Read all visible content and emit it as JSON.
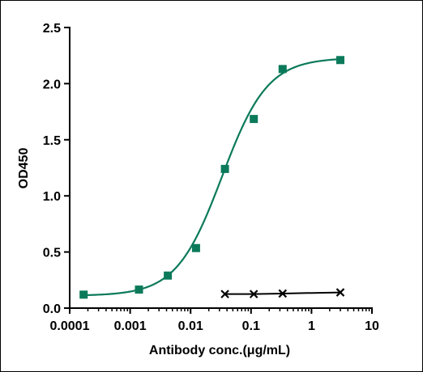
{
  "chart_data": {
    "type": "scatter",
    "title": "",
    "xlabel": "Antibody conc.(μg/mL)",
    "ylabel": "OD450",
    "x_scale": "log",
    "xlim": [
      0.0001,
      10
    ],
    "ylim": [
      0,
      2.5
    ],
    "x_ticks": [
      0.0001,
      0.001,
      0.01,
      0.1,
      1,
      10
    ],
    "x_tick_labels": [
      "0.0001",
      "0.001",
      "0.01",
      "0.1",
      "1",
      "10"
    ],
    "y_ticks": [
      0,
      0.5,
      1.0,
      1.5,
      2.0,
      2.5
    ],
    "y_tick_labels": [
      "0.0",
      "0.5",
      "1.0",
      "1.5",
      "2.0",
      "2.5"
    ],
    "grid": false,
    "legend": "none",
    "series": [
      {
        "marker": "square",
        "color": "#0b7a5a",
        "fit": "sigmoidal",
        "x": [
          0.00017,
          0.0014,
          0.0042,
          0.0123,
          0.037,
          0.111,
          0.333,
          3.0
        ],
        "y": [
          0.12,
          0.165,
          0.29,
          0.535,
          1.24,
          1.685,
          2.13,
          2.21
        ]
      },
      {
        "marker": "x",
        "color": "#000000",
        "fit": "line",
        "x": [
          0.037,
          0.111,
          0.333,
          3.0
        ],
        "y": [
          0.125,
          0.125,
          0.13,
          0.14
        ]
      }
    ]
  }
}
